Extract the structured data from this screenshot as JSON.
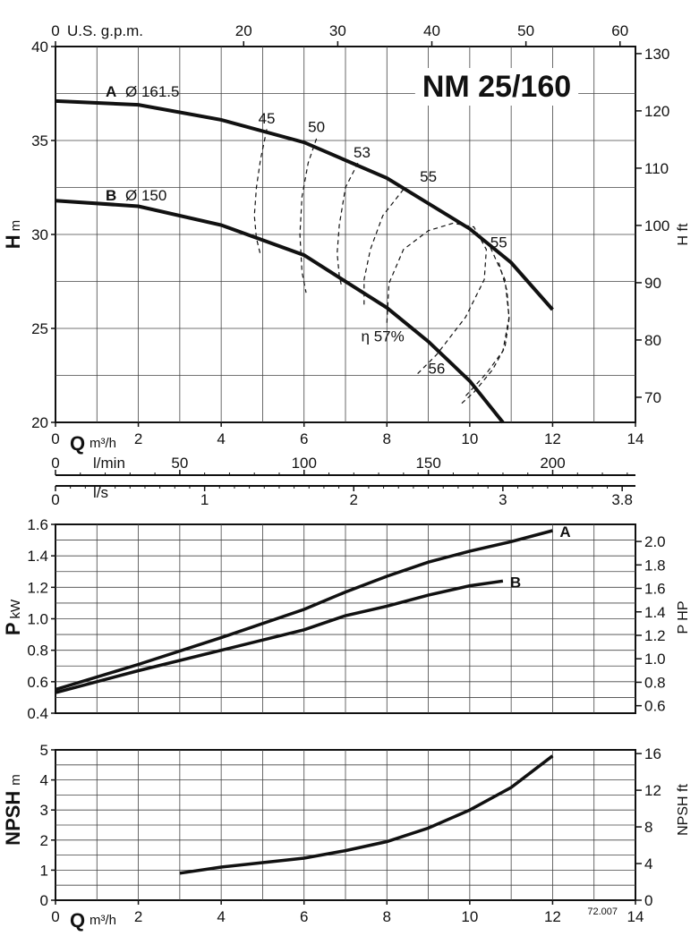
{
  "title": "NM 25/160",
  "doc_code": "72.007",
  "chart_data": [
    {
      "type": "line",
      "panel": "head",
      "ylabel": "H",
      "ylabel_unit": "m",
      "xlabel": "Q",
      "xlabel_unit": "m³/h",
      "right_label": "H ft",
      "top_label": "U.S. g.p.m.",
      "xlim": [
        0,
        14
      ],
      "ylim": [
        20,
        40
      ],
      "x_ticks": [
        0,
        2,
        4,
        6,
        8,
        10,
        12,
        14
      ],
      "y_ticks": [
        20,
        25,
        30,
        35,
        40
      ],
      "right_ticks": [
        70,
        80,
        90,
        100,
        110,
        120,
        130
      ],
      "top_ticks": [
        0,
        20,
        30,
        40,
        50,
        60
      ],
      "grid": true,
      "series": [
        {
          "name": "A",
          "diameter": "Ø 161.5",
          "x": [
            0,
            2,
            4,
            6,
            8,
            10,
            11,
            12
          ],
          "y": [
            37.1,
            36.9,
            36.1,
            34.9,
            33.0,
            30.3,
            28.5,
            26.0
          ]
        },
        {
          "name": "B",
          "diameter": "Ø 150",
          "x": [
            0,
            2,
            4,
            6,
            8,
            9,
            10,
            10.8
          ],
          "y": [
            31.8,
            31.5,
            30.5,
            28.9,
            26.1,
            24.3,
            22.2,
            20.0
          ]
        }
      ],
      "efficiency_contours": [
        {
          "label": "45",
          "x": [
            5.1,
            4.95,
            4.85,
            4.8,
            4.85,
            4.95
          ],
          "y": [
            35.6,
            34.0,
            32.5,
            31.0,
            29.8,
            28.9
          ]
        },
        {
          "label": "50",
          "x": [
            6.3,
            6.1,
            5.95,
            5.9,
            5.95,
            6.05
          ],
          "y": [
            35.1,
            33.8,
            32.0,
            30.0,
            28.0,
            26.9
          ]
        },
        {
          "label": "53",
          "x": [
            7.3,
            7.0,
            6.85,
            6.8,
            6.85,
            6.9
          ],
          "y": [
            33.8,
            32.5,
            30.5,
            29.0,
            27.8,
            27.3
          ]
        },
        {
          "label": "55",
          "x": [
            8.4,
            7.9,
            7.6,
            7.45,
            7.45
          ],
          "y": [
            32.4,
            31.0,
            29.2,
            27.6,
            26.2
          ]
        },
        {
          "label": "η 57%",
          "x": [
            8.0,
            8.05,
            8.4,
            9.0,
            9.6,
            10.1,
            10.4,
            10.35,
            9.9,
            9.2,
            8.7
          ],
          "y": [
            25.3,
            27.4,
            29.2,
            30.2,
            30.6,
            30.4,
            29.2,
            27.6,
            25.6,
            23.6,
            22.5
          ]
        },
        {
          "label": "56",
          "x": [
            10.5,
            10.85,
            10.95,
            10.8,
            10.4,
            9.9
          ],
          "y": [
            29.3,
            27.6,
            25.6,
            23.8,
            22.6,
            21.4
          ]
        },
        {
          "label": "55",
          "x": [
            10.7,
            10.9,
            10.95,
            10.85,
            10.55,
            10.1,
            9.8
          ],
          "y": [
            28.5,
            27.0,
            25.5,
            24.0,
            22.8,
            21.6,
            21.0
          ]
        }
      ]
    },
    {
      "type": "line",
      "panel": "flow-scales",
      "scales": [
        {
          "label": "l/min",
          "ticks": [
            0,
            50,
            100,
            150,
            200
          ],
          "max": 233.3
        },
        {
          "label": "l/s",
          "ticks": [
            0,
            1,
            2,
            3,
            3.8
          ],
          "max": 3.889
        }
      ]
    },
    {
      "type": "line",
      "panel": "power",
      "ylabel": "P",
      "ylabel_unit": "kW",
      "right_label": "P HP",
      "xlim": [
        0,
        14
      ],
      "ylim": [
        0.4,
        1.6
      ],
      "y_ticks": [
        0.4,
        0.6,
        0.8,
        1.0,
        1.2,
        1.4,
        1.6
      ],
      "y_tick_labels": [
        "0.4",
        "0.6",
        "0.8",
        "1.0",
        "1.2",
        "1.4",
        "1.6"
      ],
      "right_ticks": [
        0.6,
        0.8,
        1.0,
        1.2,
        1.4,
        1.6,
        1.8,
        2.0
      ],
      "right_tick_labels": [
        "0.6",
        "0.8",
        "1.0",
        "1.2",
        "1.4",
        "1.6",
        "1.8",
        "2.0"
      ],
      "grid": true,
      "series": [
        {
          "name": "A",
          "x": [
            0,
            2,
            4,
            6,
            7,
            8,
            9,
            10,
            11,
            12
          ],
          "y": [
            0.55,
            0.71,
            0.88,
            1.06,
            1.17,
            1.27,
            1.36,
            1.43,
            1.49,
            1.56
          ]
        },
        {
          "name": "B",
          "x": [
            0,
            2,
            4,
            6,
            7,
            8,
            9,
            10,
            10.8
          ],
          "y": [
            0.53,
            0.67,
            0.8,
            0.93,
            1.02,
            1.08,
            1.15,
            1.21,
            1.24
          ]
        }
      ]
    },
    {
      "type": "line",
      "panel": "npsh",
      "ylabel": "NPSH",
      "ylabel_unit": "m",
      "xlabel": "Q",
      "xlabel_unit": "m³/h",
      "right_label": "NPSH ft",
      "xlim": [
        0,
        14
      ],
      "ylim": [
        0,
        5
      ],
      "x_ticks": [
        0,
        2,
        4,
        6,
        8,
        10,
        12,
        14
      ],
      "y_ticks": [
        0,
        1,
        2,
        3,
        4,
        5
      ],
      "right_ticks": [
        0,
        4,
        8,
        12,
        16
      ],
      "grid": true,
      "series": [
        {
          "x": [
            3,
            4,
            5,
            6,
            7,
            8,
            9,
            10,
            11,
            12
          ],
          "y": [
            0.9,
            1.1,
            1.25,
            1.4,
            1.65,
            1.95,
            2.4,
            3.0,
            3.75,
            4.8
          ]
        }
      ]
    }
  ]
}
